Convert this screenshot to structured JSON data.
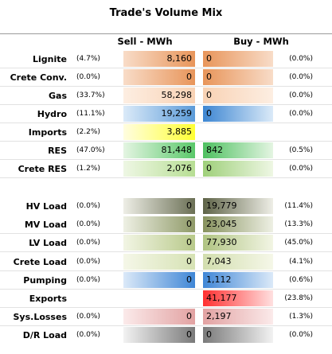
{
  "title": "Trade's Volume Mix",
  "headers": {
    "sell": "Sell - MWh",
    "buy": "Buy - MWh"
  },
  "rows": [
    {
      "label": "Lignite",
      "sell_pct": "(4.7%)",
      "sell": "8,160",
      "buy": "0",
      "buy_pct": "(0.0%)",
      "sell_grad": "linear-gradient(to right, #f8dcc8, #e8955a)",
      "buy_grad": "linear-gradient(to right, #e8955a, #f8dcc8)"
    },
    {
      "label": "Crete Conv.",
      "sell_pct": "(0.0%)",
      "sell": "0",
      "buy": "0",
      "buy_pct": "(0.0%)",
      "sell_grad": "linear-gradient(to right, #f8dcc8, #e8955a)",
      "buy_grad": "linear-gradient(to right, #e8955a, #f8dcc8)"
    },
    {
      "label": "Gas",
      "sell_pct": "(33.7%)",
      "sell": "58,298",
      "buy": "0",
      "buy_pct": "(0.0%)",
      "sell_grad": "linear-gradient(to right, #fdeee2, #f8d2b4)",
      "buy_grad": "linear-gradient(to right, #f8d2b4, #fdeee2)"
    },
    {
      "label": "Hydro",
      "sell_pct": "(11.1%)",
      "sell": "19,259",
      "buy": "0",
      "buy_pct": "(0.0%)",
      "sell_grad": "linear-gradient(to right, #dbeaf8, #5b9bd9)",
      "buy_grad": "linear-gradient(to right, #3d86d2, #dbeaf8)"
    },
    {
      "label": "Imports",
      "sell_pct": "(2.2%)",
      "sell": "3,885",
      "buy": "",
      "buy_pct": "",
      "sell_grad": "linear-gradient(to right, #fffde0, #ffff33)",
      "buy_grad": "linear-gradient(to right, #ffffff, #ffffff)"
    },
    {
      "label": "RES",
      "sell_pct": "(47.0%)",
      "sell": "81,448",
      "buy": "842",
      "buy_pct": "(0.5%)",
      "sell_grad": "linear-gradient(to right, #e4f5e2, #5ac86a)",
      "buy_grad": "linear-gradient(to right, #4ec060, #e4f5e2)"
    },
    {
      "label": "Crete RES",
      "sell_pct": "(1.2%)",
      "sell": "2,076",
      "buy": "0",
      "buy_pct": "(0.0%)",
      "sell_grad": "linear-gradient(to right, #eef7e4, #b7de94)",
      "buy_grad": "linear-gradient(to right, #9fd07a, #eef7e4)"
    },
    {
      "label": "HV Load",
      "sell_pct": "(0.0%)",
      "sell": "0",
      "buy": "19,779",
      "buy_pct": "(11.4%)",
      "sell_grad": "linear-gradient(to right, #eeeee6, #6b7055)",
      "buy_grad": "linear-gradient(to right, #5f6448, #eeeee6)"
    },
    {
      "label": "MV Load",
      "sell_pct": "(0.0%)",
      "sell": "0",
      "buy": "23,045",
      "buy_pct": "(13.3%)",
      "sell_grad": "linear-gradient(to right, #eef0e4, #8f9a68)",
      "buy_grad": "linear-gradient(to right, #87925e, #eef0e4)"
    },
    {
      "label": "LV Load",
      "sell_pct": "(0.0%)",
      "sell": "0",
      "buy": "77,930",
      "buy_pct": "(45.0%)",
      "sell_grad": "linear-gradient(to right, #f2f5e4, #b8c98a)",
      "buy_grad": "linear-gradient(to right, #b0c482, #f2f5e4)"
    },
    {
      "label": "Crete Load",
      "sell_pct": "(0.0%)",
      "sell": "0",
      "buy": "7,043",
      "buy_pct": "(4.1%)",
      "sell_grad": "linear-gradient(to right, #f5f7e8, #d6e2b4)",
      "buy_grad": "linear-gradient(to right, #d2deae, #f5f7e8)"
    },
    {
      "label": "Pumping",
      "sell_pct": "(0.0%)",
      "sell": "0",
      "buy": "1,112",
      "buy_pct": "(0.6%)",
      "sell_grad": "linear-gradient(to right, #dbe9f8, #3f86d6)",
      "buy_grad": "linear-gradient(to right, #3f86d6, #dbe9f8)"
    },
    {
      "label": "Exports",
      "sell_pct": "",
      "sell": "",
      "buy": "41,177",
      "buy_pct": "(23.8%)",
      "sell_grad": "linear-gradient(to right, #ffffff, #ffffff)",
      "buy_grad": "linear-gradient(to right, #ff3030, #ffe0e0)"
    },
    {
      "label": "Sys.Losses",
      "sell_pct": "(0.0%)",
      "sell": "0",
      "buy": "2,197",
      "buy_pct": "(1.3%)",
      "sell_grad": "linear-gradient(to right, #fbeaea, #e2a2a2)",
      "buy_grad": "linear-gradient(to right, #e2a2a2, #fbeaea)"
    },
    {
      "label": "D/R Load",
      "sell_pct": "(0.0%)",
      "sell": "0",
      "buy": "0",
      "buy_pct": "(0.0%)",
      "sell_grad": "linear-gradient(to right, #f2f2f2, #7a7a7a)",
      "buy_grad": "linear-gradient(to right, #7a7a7a, #f2f2f2)"
    }
  ]
}
